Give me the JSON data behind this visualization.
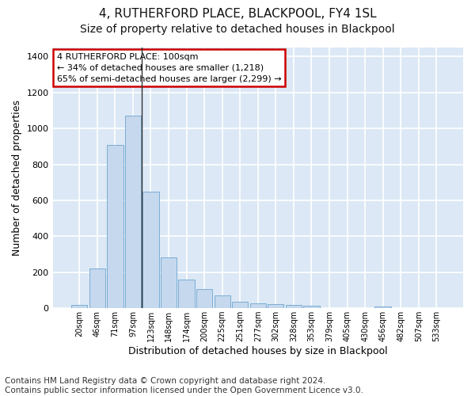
{
  "title": "4, RUTHERFORD PLACE, BLACKPOOL, FY4 1SL",
  "subtitle": "Size of property relative to detached houses in Blackpool",
  "xlabel": "Distribution of detached houses by size in Blackpool",
  "ylabel": "Number of detached properties",
  "categories": [
    "20sqm",
    "46sqm",
    "71sqm",
    "97sqm",
    "123sqm",
    "148sqm",
    "174sqm",
    "200sqm",
    "225sqm",
    "251sqm",
    "277sqm",
    "302sqm",
    "328sqm",
    "353sqm",
    "379sqm",
    "405sqm",
    "430sqm",
    "456sqm",
    "482sqm",
    "507sqm",
    "533sqm"
  ],
  "values": [
    18,
    222,
    910,
    1070,
    648,
    283,
    158,
    106,
    70,
    37,
    25,
    22,
    20,
    14,
    0,
    0,
    0,
    10,
    0,
    0,
    0
  ],
  "bar_color": "#c5d8ed",
  "bar_edge_color": "#7aadd4",
  "ylim": [
    0,
    1450
  ],
  "yticks": [
    0,
    200,
    400,
    600,
    800,
    1000,
    1200,
    1400
  ],
  "plot_bg": "#dce8f5",
  "annotation_text": "4 RUTHERFORD PLACE: 100sqm\n← 34% of detached houses are smaller (1,218)\n65% of semi-detached houses are larger (2,299) →",
  "annotation_box_color": "#ffffff",
  "annotation_box_edge": "#cc0000",
  "vline_bar_index": 3,
  "footer": "Contains HM Land Registry data © Crown copyright and database right 2024.\nContains public sector information licensed under the Open Government Licence v3.0.",
  "title_fontsize": 11,
  "subtitle_fontsize": 10,
  "xlabel_fontsize": 9,
  "ylabel_fontsize": 9,
  "tick_fontsize": 8,
  "footer_fontsize": 7.5
}
